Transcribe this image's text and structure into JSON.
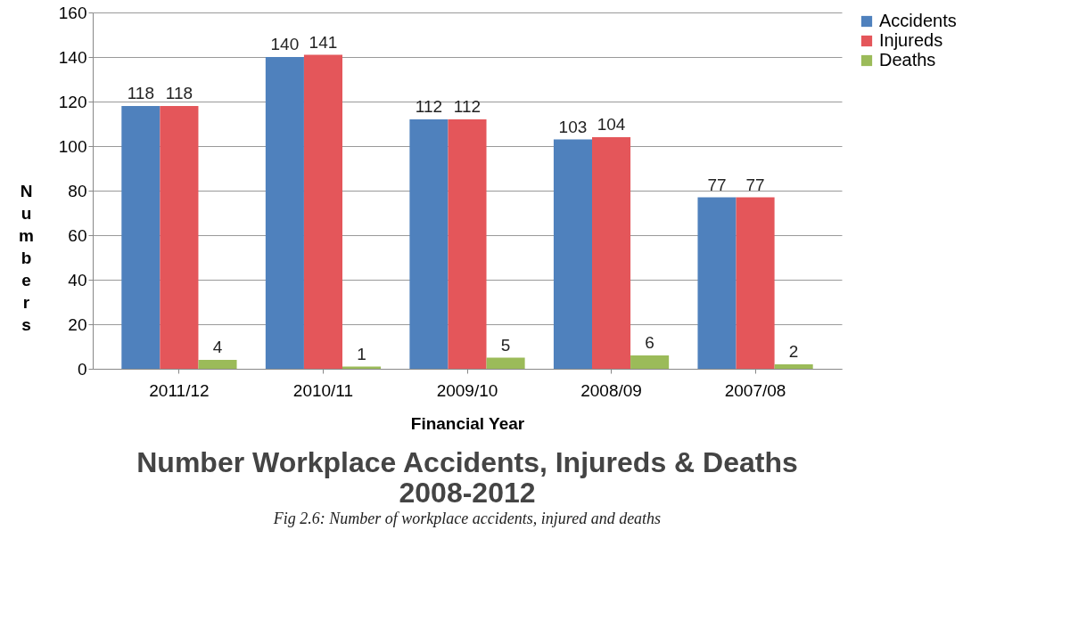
{
  "chart_data": {
    "type": "bar",
    "title": [
      "Number Workplace Accidents, Injureds & Deaths",
      "2008-2012"
    ],
    "annotations": [
      "Fig 2.6: Number of workplace accidents, injured and deaths"
    ],
    "xlabel": "Financial Year",
    "ylabel": "Numbers",
    "categories": [
      "2011/12",
      "2010/11",
      "2009/10",
      "2008/09",
      "2007/08"
    ],
    "series": [
      {
        "name": "Accidents",
        "color": "#4f81bd",
        "values": [
          118,
          140,
          112,
          103,
          77
        ]
      },
      {
        "name": "Injureds",
        "color": "#e4565a",
        "values": [
          118,
          141,
          112,
          104,
          77
        ]
      },
      {
        "name": "Deaths",
        "color": "#9bbb59",
        "values": [
          4,
          1,
          5,
          6,
          2
        ]
      }
    ],
    "ylim": [
      0,
      160
    ],
    "yticks": [
      0,
      20,
      40,
      60,
      80,
      100,
      120,
      140,
      160
    ],
    "grid": "y",
    "legend": "right",
    "data_labels": true
  }
}
